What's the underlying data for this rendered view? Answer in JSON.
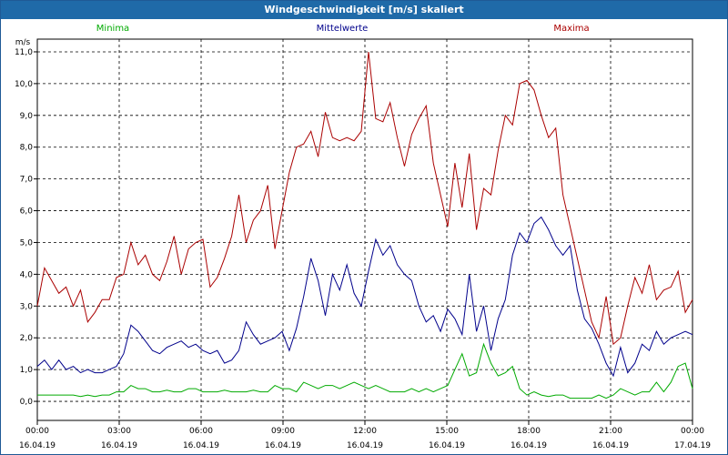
{
  "window": {
    "title": "Windgeschwindigkeit [m/s] skaliert"
  },
  "chart_data": {
    "type": "line",
    "title": "Windgeschwindigkeit [m/s] skaliert",
    "yunit": "m/s",
    "ylim": [
      -0.6,
      11.4
    ],
    "xlim": [
      0,
      24
    ],
    "grid": true,
    "legend_position": "top",
    "y_ticks": [
      "0,0",
      "1,0",
      "2,0",
      "3,0",
      "4,0",
      "5,0",
      "6,0",
      "7,0",
      "8,0",
      "9,0",
      "10,0",
      "11,0"
    ],
    "x_ticks": [
      {
        "time": "00:00",
        "date": "16.04.19"
      },
      {
        "time": "03:00",
        "date": "16.04.19"
      },
      {
        "time": "06:00",
        "date": "16.04.19"
      },
      {
        "time": "09:00",
        "date": "16.04.19"
      },
      {
        "time": "12:00",
        "date": "16.04.19"
      },
      {
        "time": "15:00",
        "date": "16.04.19"
      },
      {
        "time": "18:00",
        "date": "16.04.19"
      },
      {
        "time": "21:00",
        "date": "16.04.19"
      },
      {
        "time": "00:00",
        "date": "17.04.19"
      }
    ],
    "series": [
      {
        "name": "Minima",
        "color": "#00aa00",
        "values": [
          0.2,
          0.2,
          0.2,
          0.2,
          0.2,
          0.2,
          0.15,
          0.2,
          0.15,
          0.2,
          0.2,
          0.3,
          0.3,
          0.5,
          0.4,
          0.4,
          0.3,
          0.3,
          0.35,
          0.3,
          0.3,
          0.4,
          0.4,
          0.3,
          0.3,
          0.3,
          0.35,
          0.3,
          0.3,
          0.3,
          0.35,
          0.3,
          0.3,
          0.5,
          0.4,
          0.4,
          0.3,
          0.6,
          0.5,
          0.4,
          0.5,
          0.5,
          0.4,
          0.5,
          0.6,
          0.5,
          0.4,
          0.5,
          0.4,
          0.3,
          0.3,
          0.3,
          0.4,
          0.3,
          0.4,
          0.3,
          0.4,
          0.5,
          1.0,
          1.5,
          0.8,
          0.9,
          1.8,
          1.2,
          0.8,
          0.9,
          1.1,
          0.4,
          0.2,
          0.3,
          0.2,
          0.15,
          0.2,
          0.2,
          0.1,
          0.1,
          0.1,
          0.1,
          0.2,
          0.1,
          0.2,
          0.4,
          0.3,
          0.2,
          0.3,
          0.3,
          0.6,
          0.3,
          0.6,
          1.1,
          1.2,
          0.4
        ]
      },
      {
        "name": "Mittelwerte",
        "color": "#00008b",
        "values": [
          1.1,
          1.3,
          1.0,
          1.3,
          1.0,
          1.1,
          0.9,
          1.0,
          0.9,
          0.9,
          1.0,
          1.1,
          1.5,
          2.4,
          2.2,
          1.9,
          1.6,
          1.5,
          1.7,
          1.8,
          1.9,
          1.7,
          1.8,
          1.6,
          1.5,
          1.6,
          1.2,
          1.3,
          1.6,
          2.5,
          2.1,
          1.8,
          1.9,
          2.0,
          2.2,
          1.6,
          2.3,
          3.3,
          4.5,
          3.8,
          2.7,
          4.0,
          3.5,
          4.3,
          3.4,
          3.0,
          4.1,
          5.1,
          4.6,
          4.9,
          4.3,
          4.0,
          3.8,
          3.0,
          2.5,
          2.7,
          2.2,
          2.9,
          2.6,
          2.1,
          4.0,
          2.2,
          3.0,
          1.6,
          2.6,
          3.2,
          4.6,
          5.3,
          5.0,
          5.6,
          5.8,
          5.4,
          4.9,
          4.6,
          4.9,
          3.5,
          2.6,
          2.3,
          1.8,
          1.2,
          0.8,
          1.7,
          0.9,
          1.2,
          1.8,
          1.6,
          2.2,
          1.8,
          2.0,
          2.1,
          2.2,
          2.1
        ]
      },
      {
        "name": "Maxima",
        "color": "#aa0000",
        "values": [
          3.0,
          4.2,
          3.8,
          3.4,
          3.6,
          3.0,
          3.5,
          2.5,
          2.8,
          3.2,
          3.2,
          3.9,
          4.0,
          5.0,
          4.3,
          4.6,
          4.0,
          3.8,
          4.4,
          5.2,
          4.0,
          4.8,
          5.0,
          5.1,
          3.6,
          3.9,
          4.5,
          5.2,
          6.5,
          5.0,
          5.7,
          6.0,
          6.8,
          4.8,
          6.0,
          7.2,
          8.0,
          8.1,
          8.5,
          7.7,
          9.1,
          8.3,
          8.2,
          8.3,
          8.2,
          8.5,
          11.0,
          8.9,
          8.8,
          9.4,
          8.3,
          7.4,
          8.4,
          8.9,
          9.3,
          7.5,
          6.5,
          5.5,
          7.5,
          6.1,
          7.8,
          5.4,
          6.7,
          6.5,
          7.9,
          9.0,
          8.7,
          10.0,
          10.1,
          9.8,
          9.0,
          8.3,
          8.6,
          6.5,
          5.5,
          4.5,
          3.5,
          2.5,
          2.0,
          3.3,
          1.8,
          2.0,
          3.0,
          3.9,
          3.4,
          4.3,
          3.2,
          3.5,
          3.6,
          4.1,
          2.8,
          3.2
        ]
      }
    ]
  }
}
